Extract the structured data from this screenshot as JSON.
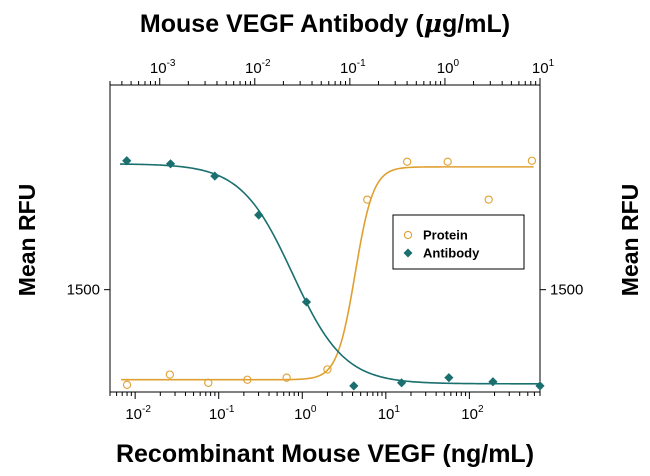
{
  "chart_data": {
    "type": "scatter",
    "top_axis": {
      "label_prefix": "Mouse VEGF Antibody (",
      "label_mu": "μ",
      "label_suffix": "g/mL)",
      "scale": "log",
      "range": [
        0.0003,
        10
      ],
      "ticks": [
        {
          "value": 0.001,
          "base": "10",
          "exp": "-3"
        },
        {
          "value": 0.01,
          "base": "10",
          "exp": "-2"
        },
        {
          "value": 0.1,
          "base": "10",
          "exp": "-1"
        },
        {
          "value": 1,
          "base": "10",
          "exp": "0"
        },
        {
          "value": 10,
          "base": "10",
          "exp": "1"
        }
      ]
    },
    "bottom_axis": {
      "label": "Recombinant Mouse VEGF (ng/mL)",
      "scale": "log",
      "range": [
        0.005,
        700
      ],
      "ticks": [
        {
          "value": 0.01,
          "base": "10",
          "exp": "-2"
        },
        {
          "value": 0.1,
          "base": "10",
          "exp": "-1"
        },
        {
          "value": 1,
          "base": "10",
          "exp": "0"
        },
        {
          "value": 10,
          "base": "10",
          "exp": "1"
        },
        {
          "value": 100,
          "base": "10",
          "exp": "2"
        }
      ]
    },
    "y_axis": {
      "label": "Mean RFU",
      "range": [
        1000,
        2500
      ],
      "ticks": [
        {
          "value": 1500,
          "label": "1500"
        }
      ]
    },
    "legend_position": "right-middle",
    "series": [
      {
        "name": "Protein",
        "axis": "bottom",
        "color": "#E0A030",
        "marker": "open-circle",
        "points": [
          [
            0.008,
            1035
          ],
          [
            0.026,
            1085
          ],
          [
            0.075,
            1045
          ],
          [
            0.22,
            1060
          ],
          [
            0.65,
            1070
          ],
          [
            2.0,
            1110
          ],
          [
            6.0,
            1940
          ],
          [
            18,
            2125
          ],
          [
            55,
            2125
          ],
          [
            170,
            1940
          ],
          [
            560,
            2130
          ]
        ],
        "curve": {
          "bottom": 1060,
          "top": 2100,
          "ec50": 4.3,
          "hill": 4
        }
      },
      {
        "name": "Antibody",
        "axis": "top",
        "color": "#1A6F6F",
        "marker": "filled-diamond",
        "points": [
          [
            0.00045,
            2130
          ],
          [
            0.0013,
            2115
          ],
          [
            0.0038,
            2055
          ],
          [
            0.011,
            1865
          ],
          [
            0.035,
            1440
          ],
          [
            0.11,
            1030
          ],
          [
            0.35,
            1045
          ],
          [
            1.1,
            1070
          ],
          [
            3.2,
            1050
          ],
          [
            10,
            1030
          ]
        ],
        "curve": {
          "bottom": 1040,
          "top": 2115,
          "ec50": 0.025,
          "hill": -1.6
        }
      }
    ]
  }
}
